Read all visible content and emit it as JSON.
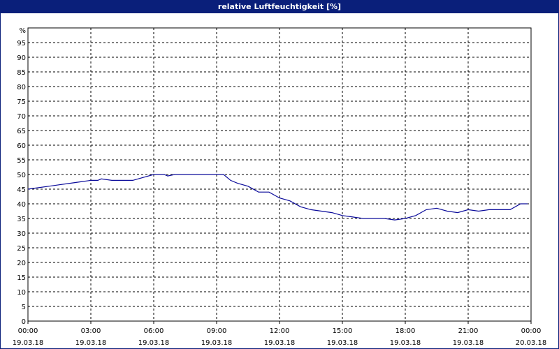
{
  "window": {
    "title": "relative Luftfeuchtigkeit [%]"
  },
  "colors": {
    "titlebar": "#0a1f7a",
    "line": "#0a0a9a",
    "grid": "#000000"
  },
  "chart_data": {
    "type": "line",
    "title": "relative Luftfeuchtigkeit [%]",
    "ylabel": "%",
    "xlabel": "",
    "ylim": [
      0,
      100
    ],
    "xlim_hours": [
      0,
      24
    ],
    "grid": true,
    "grid_style": "dashed",
    "y_ticks": [
      0,
      5,
      10,
      15,
      20,
      25,
      30,
      35,
      40,
      45,
      50,
      55,
      60,
      65,
      70,
      75,
      80,
      85,
      90,
      95
    ],
    "x_ticks": [
      {
        "time": "00:00",
        "date": "19.03.18"
      },
      {
        "time": "03:00",
        "date": "19.03.18"
      },
      {
        "time": "06:00",
        "date": "19.03.18"
      },
      {
        "time": "09:00",
        "date": "19.03.18"
      },
      {
        "time": "12:00",
        "date": "19.03.18"
      },
      {
        "time": "15:00",
        "date": "19.03.18"
      },
      {
        "time": "18:00",
        "date": "19.03.18"
      },
      {
        "time": "21:00",
        "date": "19.03.18"
      },
      {
        "time": "00:00",
        "date": "20.03.18"
      }
    ],
    "series": [
      {
        "name": "",
        "x": [
          "00:00",
          "00:30",
          "01:00",
          "01:30",
          "02:00",
          "02:30",
          "03:00",
          "03:20",
          "03:30",
          "04:00",
          "04:30",
          "05:00",
          "05:30",
          "06:00",
          "06:30",
          "06:40",
          "07:00",
          "07:30",
          "08:00",
          "08:30",
          "09:00",
          "09:20",
          "09:40",
          "10:00",
          "10:30",
          "11:00",
          "11:30",
          "12:00",
          "12:30",
          "13:00",
          "13:30",
          "14:00",
          "14:30",
          "15:00",
          "15:30",
          "16:00",
          "16:30",
          "17:00",
          "17:30",
          "18:00",
          "18:30",
          "19:00",
          "19:30",
          "20:00",
          "20:30",
          "21:00",
          "21:30",
          "22:00",
          "22:30",
          "23:00",
          "23:30",
          "23:50"
        ],
        "values": [
          45,
          45.5,
          46,
          46.5,
          47,
          47.5,
          48,
          48,
          48.5,
          48,
          48,
          48,
          49,
          50,
          50,
          49.5,
          50,
          50,
          50,
          50,
          50,
          50,
          48,
          47,
          46,
          44,
          44,
          42,
          41,
          39,
          38,
          37.5,
          37,
          36,
          35.5,
          35,
          35,
          35,
          34.5,
          35,
          36,
          38,
          38.5,
          37.5,
          37,
          38,
          37.5,
          38,
          38,
          38,
          40,
          40
        ]
      }
    ]
  }
}
